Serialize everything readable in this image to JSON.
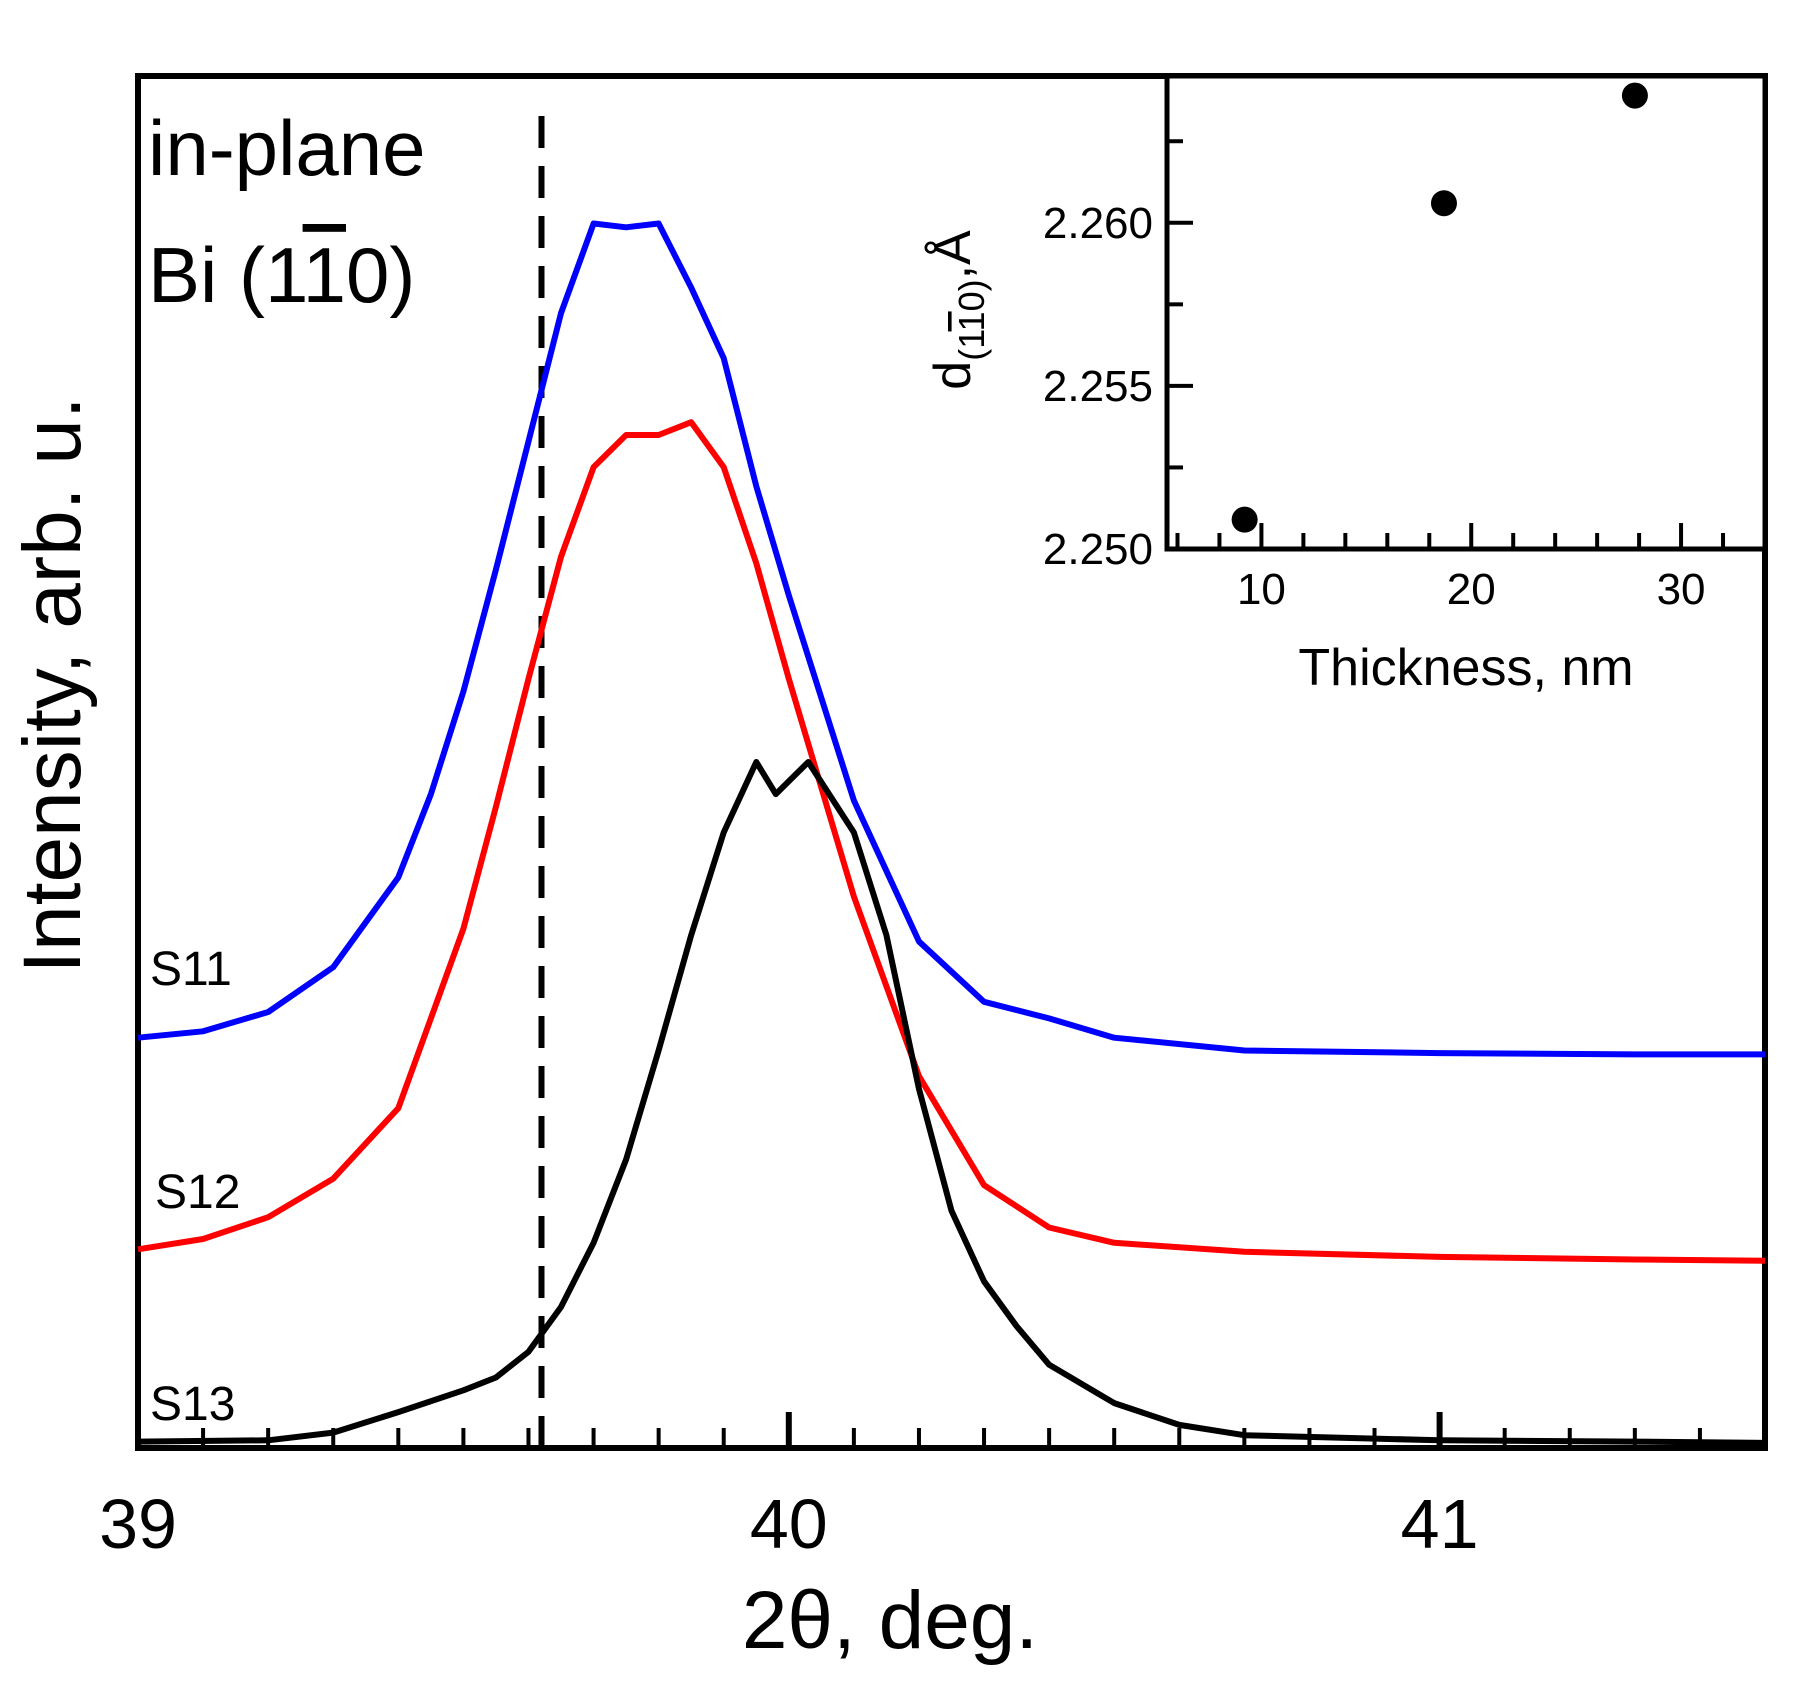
{
  "chart_data": [
    {
      "type": "line",
      "title": "",
      "xlabel": "2θ, deg.",
      "ylabel": "Intensity, arb. u.",
      "xlim": [
        39.0,
        41.5
      ],
      "ylim": [
        0,
        1.07
      ],
      "grid": false,
      "x_ticks": [
        {
          "value": 39,
          "label": "39"
        },
        {
          "value": 40,
          "label": "40"
        },
        {
          "value": 41,
          "label": "41"
        }
      ],
      "annotations": {
        "line1": "in-plane",
        "line2_prefix": "Bi (1",
        "line2_bar": "1",
        "line2_suffix": "0)"
      },
      "reference_line": {
        "x": 39.62,
        "style": "dashed",
        "color": "#000000"
      },
      "series": [
        {
          "name": "S11",
          "color": "#0000ff",
          "x": [
            39.0,
            39.1,
            39.2,
            39.3,
            39.4,
            39.45,
            39.5,
            39.55,
            39.6,
            39.65,
            39.7,
            39.75,
            39.8,
            39.85,
            39.9,
            39.95,
            40.0,
            40.1,
            40.2,
            40.3,
            40.4,
            40.5,
            40.7,
            41.0,
            41.3,
            41.5
          ],
          "y": [
            0.32,
            0.325,
            0.34,
            0.375,
            0.445,
            0.51,
            0.59,
            0.685,
            0.785,
            0.885,
            0.955,
            0.952,
            0.955,
            0.905,
            0.85,
            0.75,
            0.665,
            0.505,
            0.395,
            0.348,
            0.335,
            0.32,
            0.31,
            0.308,
            0.307,
            0.307
          ]
        },
        {
          "name": "S12",
          "color": "#ff0000",
          "x": [
            39.0,
            39.1,
            39.2,
            39.3,
            39.4,
            39.45,
            39.5,
            39.55,
            39.6,
            39.65,
            39.7,
            39.75,
            39.8,
            39.85,
            39.9,
            39.95,
            40.0,
            40.1,
            40.2,
            40.3,
            40.4,
            40.5,
            40.7,
            41.0,
            41.3,
            41.5
          ],
          "y": [
            0.155,
            0.163,
            0.18,
            0.21,
            0.265,
            0.335,
            0.405,
            0.5,
            0.6,
            0.695,
            0.765,
            0.79,
            0.79,
            0.8,
            0.765,
            0.69,
            0.6,
            0.43,
            0.29,
            0.205,
            0.172,
            0.16,
            0.153,
            0.149,
            0.147,
            0.146
          ]
        },
        {
          "name": "S13",
          "color": "#000000",
          "x": [
            39.0,
            39.2,
            39.3,
            39.4,
            39.5,
            39.55,
            39.6,
            39.65,
            39.7,
            39.75,
            39.8,
            39.85,
            39.9,
            39.95,
            39.98,
            40.0,
            40.03,
            40.1,
            40.15,
            40.2,
            40.25,
            40.3,
            40.35,
            40.4,
            40.5,
            40.6,
            40.7,
            41.0,
            41.3,
            41.5
          ],
          "y": [
            0.005,
            0.006,
            0.012,
            0.028,
            0.045,
            0.055,
            0.075,
            0.11,
            0.16,
            0.225,
            0.31,
            0.4,
            0.48,
            0.535,
            0.51,
            0.52,
            0.535,
            0.48,
            0.4,
            0.28,
            0.185,
            0.13,
            0.095,
            0.065,
            0.035,
            0.018,
            0.01,
            0.006,
            0.005,
            0.004
          ]
        }
      ]
    },
    {
      "type": "scatter",
      "title": "",
      "xlabel": "Thickness, nm",
      "ylabel_main": "d",
      "ylabel_sub_prefix": "(1",
      "ylabel_sub_bar": "1",
      "ylabel_sub_suffix": "0)",
      "ylabel_unit": ",Å",
      "xlim": [
        5.5,
        34
      ],
      "ylim": [
        2.25,
        2.2645
      ],
      "x_ticks": [
        {
          "value": 10,
          "label": "10"
        },
        {
          "value": 20,
          "label": "20"
        },
        {
          "value": 30,
          "label": "30"
        }
      ],
      "y_ticks": [
        {
          "value": 2.25,
          "label": "2.250"
        },
        {
          "value": 2.255,
          "label": "2.255"
        },
        {
          "value": 2.26,
          "label": "2.260"
        }
      ],
      "points": [
        {
          "x": 9.2,
          "y": 2.2509
        },
        {
          "x": 18.7,
          "y": 2.2606
        },
        {
          "x": 27.8,
          "y": 2.2639
        }
      ]
    }
  ]
}
